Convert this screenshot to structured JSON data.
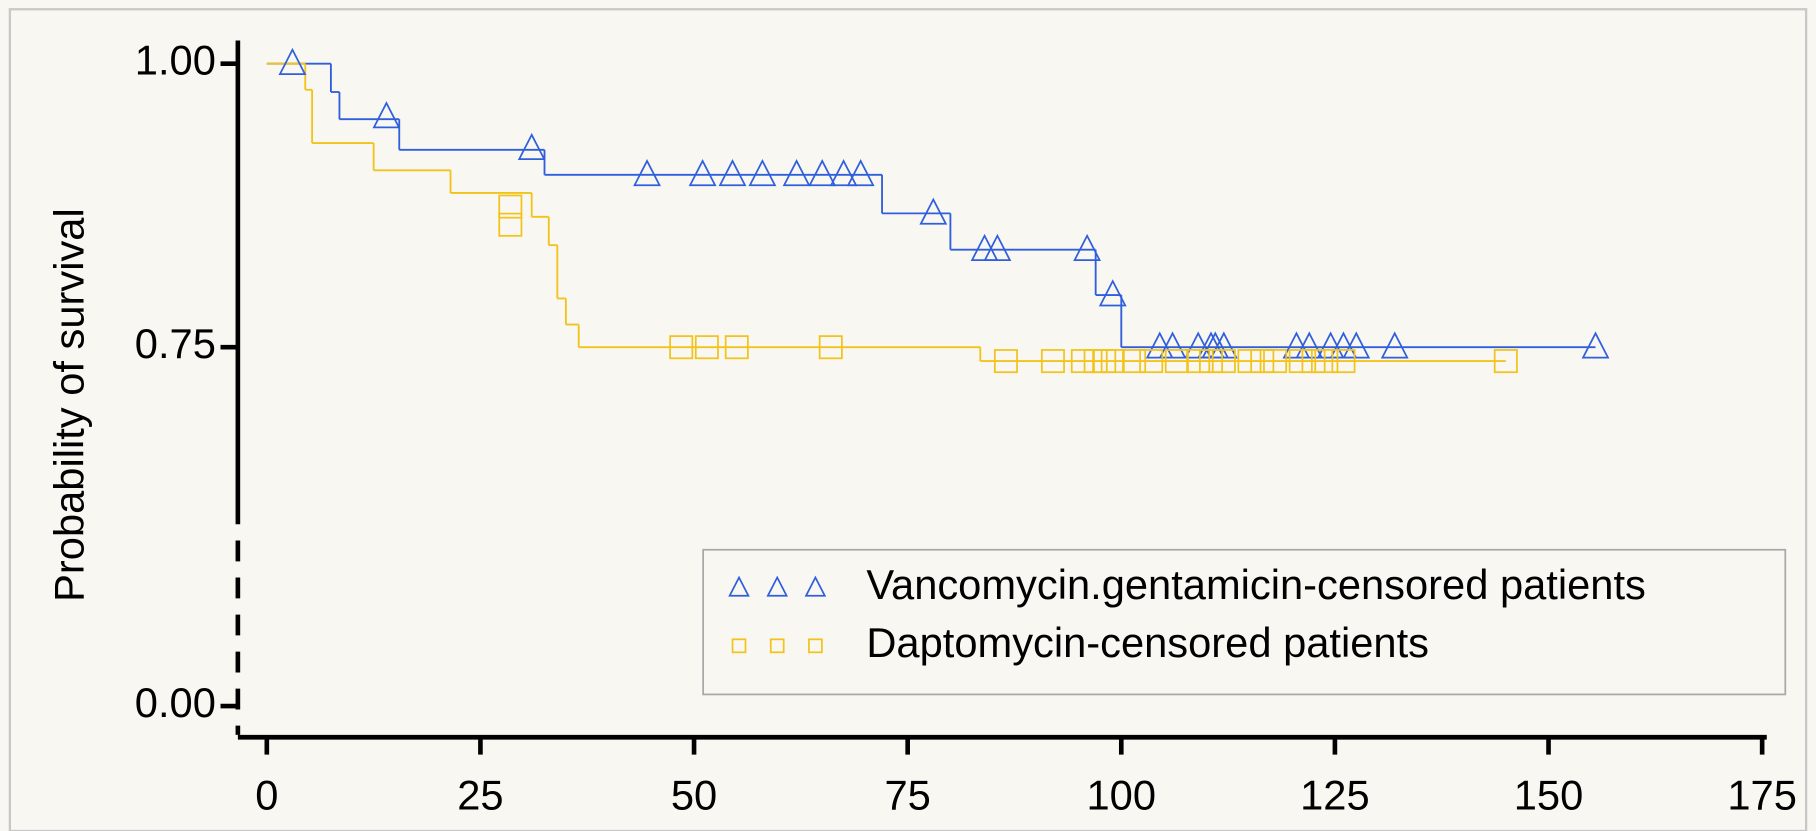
{
  "chart_data": {
    "type": "step",
    "y_label": "Probability of survival",
    "xlim": [
      0,
      175
    ],
    "xticks": [
      0,
      25,
      50,
      75,
      100,
      125,
      150,
      175
    ],
    "ylim": [
      0,
      1
    ],
    "yticks": [
      {
        "value": 0,
        "label": "0.00"
      },
      {
        "value": 0.75,
        "label": "0.75"
      },
      {
        "value": 1,
        "label": "1.00"
      }
    ],
    "ybreak": [
      0,
      0.75
    ],
    "legend": "lower right",
    "series": [
      {
        "color": "#2f5fdc",
        "x": [
          0,
          7.5,
          8.5,
          15.5,
          32.5,
          72,
          80,
          97,
          100,
          155.5
        ],
        "values": [
          1.0,
          0.975,
          0.951,
          0.924,
          0.902,
          0.868,
          0.836,
          0.796,
          0.75,
          0.75
        ]
      },
      {
        "color": "#f2c31a",
        "x": [
          0,
          4.5,
          5.3,
          12.5,
          21.5,
          31,
          33,
          34,
          35,
          36.5,
          83.5,
          145
        ],
        "values": [
          1.0,
          0.977,
          0.93,
          0.906,
          0.886,
          0.865,
          0.84,
          0.793,
          0.77,
          0.75,
          0.721,
          0.721
        ]
      }
    ],
    "censored": [
      {
        "name": "Vancomycin.gentamicin-censored patients",
        "color": "#2f5fdc",
        "marker": "triangle",
        "x": [
          3,
          14,
          31,
          44.5,
          51,
          54.5,
          58,
          62,
          65,
          67.5,
          69.5,
          78,
          84,
          85.5,
          96,
          99,
          104.5,
          106,
          109,
          110.5,
          111,
          112,
          120.5,
          122,
          124.5,
          126,
          127.5,
          132,
          155.5
        ],
        "values": [
          1.0,
          0.953,
          0.925,
          0.902,
          0.902,
          0.902,
          0.902,
          0.902,
          0.902,
          0.902,
          0.902,
          0.868,
          0.836,
          0.836,
          0.836,
          0.796,
          0.75,
          0.75,
          0.75,
          0.75,
          0.75,
          0.75,
          0.75,
          0.75,
          0.75,
          0.75,
          0.75,
          0.75,
          0.75
        ]
      },
      {
        "name": "Daptomycin-censored patients",
        "color": "#f2c31a",
        "marker": "square",
        "x": [
          28.5,
          28.5,
          48.5,
          51.5,
          55,
          66,
          86.5,
          92,
          95.5,
          97,
          98,
          99,
          101.5,
          103.5,
          106.5,
          109,
          110.5,
          112,
          115,
          116.5,
          118,
          121,
          122.5,
          124,
          126,
          145
        ],
        "values": [
          0.874,
          0.858,
          0.75,
          0.75,
          0.75,
          0.75,
          0.721,
          0.721,
          0.721,
          0.721,
          0.721,
          0.721,
          0.721,
          0.721,
          0.721,
          0.721,
          0.721,
          0.721,
          0.721,
          0.721,
          0.721,
          0.721,
          0.721,
          0.721,
          0.721,
          0.721
        ]
      }
    ]
  }
}
